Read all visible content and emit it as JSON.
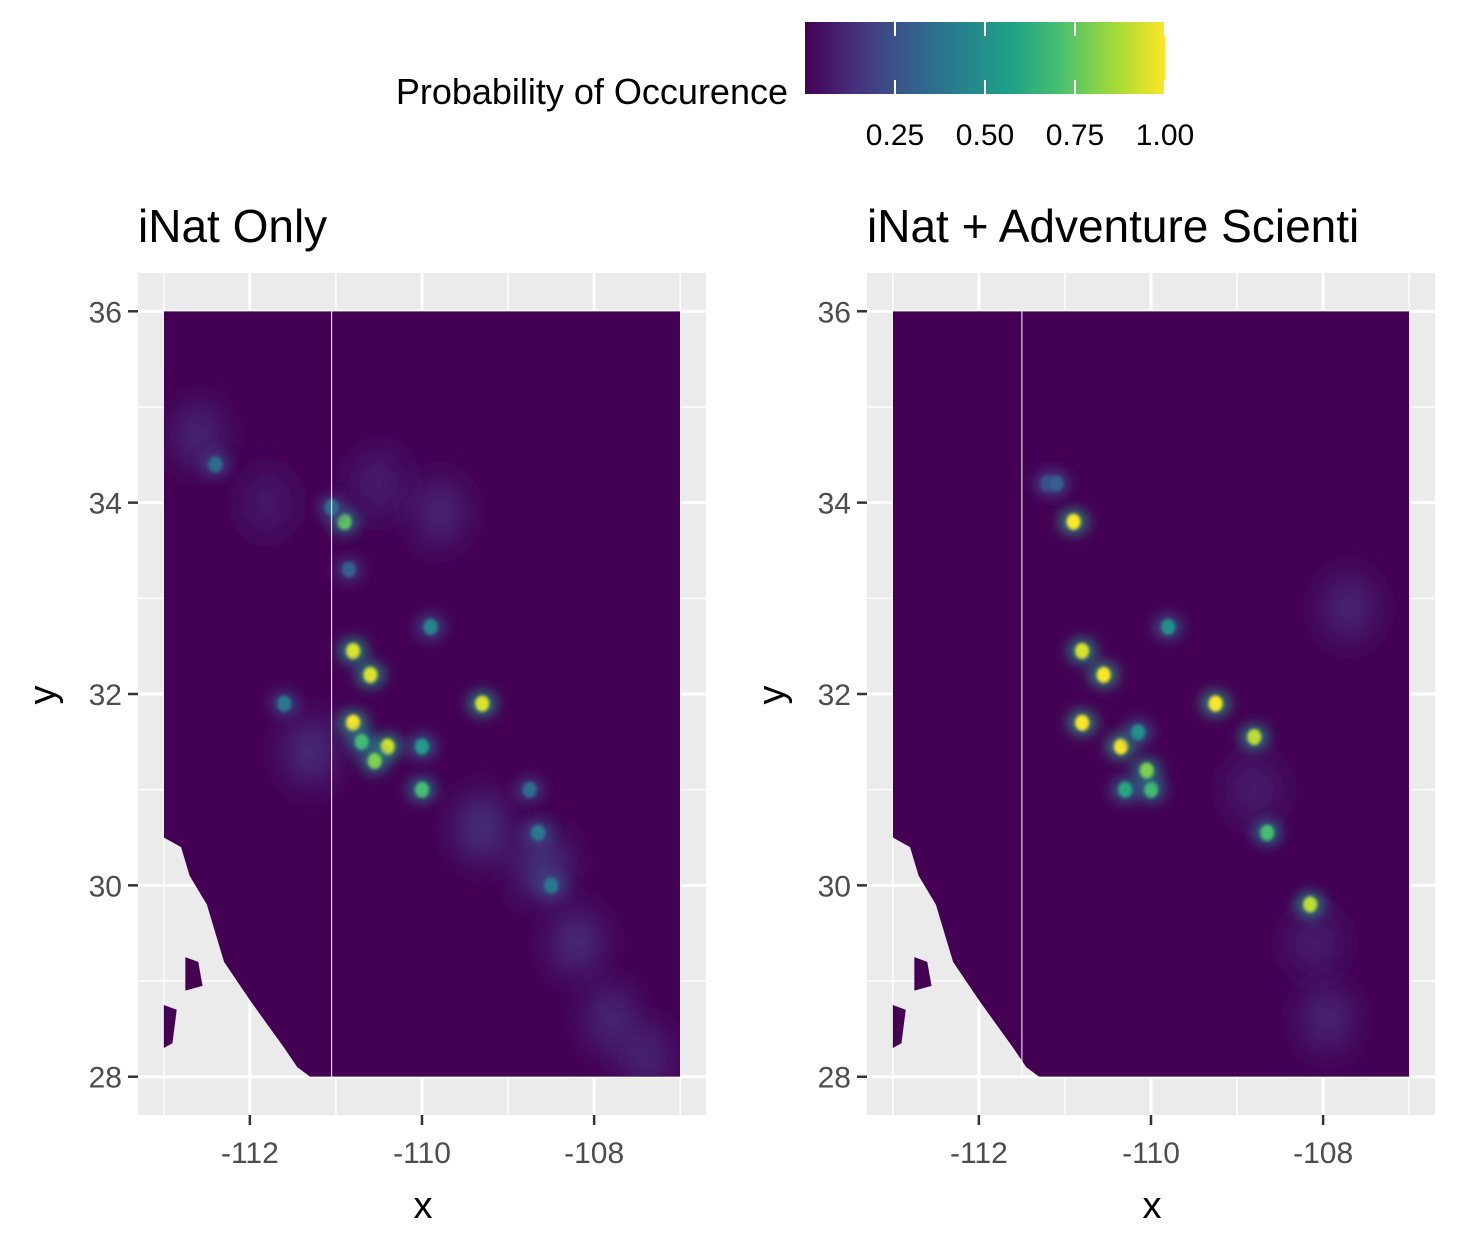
{
  "legend": {
    "title": "Probability of Occurence",
    "tick_labels": [
      "0.25",
      "0.50",
      "0.75",
      "1.00"
    ],
    "tick_values": [
      0.25,
      0.5,
      0.75,
      1.0
    ],
    "range": [
      0.0,
      1.0
    ],
    "colors": [
      "#440154",
      "#46327e",
      "#365c8d",
      "#277f8e",
      "#1fa187",
      "#4ac16d",
      "#a0da39",
      "#fde725"
    ],
    "placement": "top"
  },
  "chart_data": [
    {
      "type": "heatmap",
      "title": "iNat Only",
      "xlabel": "x",
      "ylabel": "y",
      "xlim": [
        -113.3,
        -106.7
      ],
      "ylim": [
        27.6,
        36.4
      ],
      "x_ticks": [
        -112,
        -110,
        -108
      ],
      "x_tick_labels": [
        "-112",
        "-110",
        "-108"
      ],
      "y_ticks": [
        28,
        30,
        32,
        34,
        36
      ],
      "y_tick_labels": [
        "28",
        "30",
        "32",
        "34",
        "36"
      ],
      "raster_extent": {
        "x": [
          -113.0,
          -107.0
        ],
        "y": [
          28.0,
          36.0
        ]
      },
      "seam_x": -111.05,
      "grid": true,
      "hotspots": [
        {
          "x": -110.8,
          "y": 32.45,
          "value": 0.95
        },
        {
          "x": -110.6,
          "y": 32.2,
          "value": 0.95
        },
        {
          "x": -110.8,
          "y": 31.7,
          "value": 1.0
        },
        {
          "x": -110.7,
          "y": 31.5,
          "value": 0.7
        },
        {
          "x": -110.4,
          "y": 31.45,
          "value": 0.95
        },
        {
          "x": -109.3,
          "y": 31.9,
          "value": 0.95
        },
        {
          "x": -110.9,
          "y": 33.8,
          "value": 0.75
        },
        {
          "x": -110.0,
          "y": 31.0,
          "value": 0.7
        },
        {
          "x": -110.0,
          "y": 31.45,
          "value": 0.55
        },
        {
          "x": -110.55,
          "y": 31.3,
          "value": 0.8
        },
        {
          "x": -109.9,
          "y": 32.7,
          "value": 0.45
        },
        {
          "x": -111.6,
          "y": 31.9,
          "value": 0.4
        },
        {
          "x": -112.4,
          "y": 34.4,
          "value": 0.35
        },
        {
          "x": -108.65,
          "y": 30.55,
          "value": 0.4
        },
        {
          "x": -108.5,
          "y": 30.0,
          "value": 0.4
        },
        {
          "x": -108.75,
          "y": 31.0,
          "value": 0.35
        },
        {
          "x": -111.05,
          "y": 33.95,
          "value": 0.35
        },
        {
          "x": -110.85,
          "y": 33.3,
          "value": 0.3
        }
      ],
      "diffuse_bands": [
        {
          "x": -108.6,
          "y": 30.2,
          "value": 0.18
        },
        {
          "x": -108.2,
          "y": 29.4,
          "value": 0.14
        },
        {
          "x": -107.8,
          "y": 28.6,
          "value": 0.13
        },
        {
          "x": -107.4,
          "y": 28.2,
          "value": 0.12
        },
        {
          "x": -109.3,
          "y": 30.6,
          "value": 0.16
        },
        {
          "x": -110.5,
          "y": 34.2,
          "value": 0.1
        },
        {
          "x": -109.8,
          "y": 33.9,
          "value": 0.12
        },
        {
          "x": -112.6,
          "y": 34.7,
          "value": 0.12
        },
        {
          "x": -111.8,
          "y": 34.0,
          "value": 0.08
        },
        {
          "x": -111.3,
          "y": 31.4,
          "value": 0.14
        }
      ]
    },
    {
      "type": "heatmap",
      "title": "iNat + Adventure Scienti",
      "xlabel": "x",
      "ylabel": "y",
      "xlim": [
        -113.3,
        -106.7
      ],
      "ylim": [
        27.6,
        36.4
      ],
      "x_ticks": [
        -112,
        -110,
        -108
      ],
      "x_tick_labels": [
        "-112",
        "-110",
        "-108"
      ],
      "y_ticks": [
        28,
        30,
        32,
        34,
        36
      ],
      "y_tick_labels": [
        "28",
        "30",
        "32",
        "34",
        "36"
      ],
      "raster_extent": {
        "x": [
          -113.0,
          -107.0
        ],
        "y": [
          28.0,
          36.0
        ]
      },
      "seam_x": -111.5,
      "grid": true,
      "hotspots": [
        {
          "x": -110.9,
          "y": 33.8,
          "value": 1.0
        },
        {
          "x": -110.8,
          "y": 32.45,
          "value": 0.95
        },
        {
          "x": -110.55,
          "y": 32.2,
          "value": 1.0
        },
        {
          "x": -110.8,
          "y": 31.7,
          "value": 1.0
        },
        {
          "x": -110.35,
          "y": 31.45,
          "value": 1.0
        },
        {
          "x": -109.25,
          "y": 31.9,
          "value": 1.0
        },
        {
          "x": -110.0,
          "y": 31.0,
          "value": 0.7
        },
        {
          "x": -110.3,
          "y": 31.0,
          "value": 0.6
        },
        {
          "x": -109.8,
          "y": 32.7,
          "value": 0.5
        },
        {
          "x": -108.8,
          "y": 31.55,
          "value": 0.9
        },
        {
          "x": -108.65,
          "y": 30.55,
          "value": 0.7
        },
        {
          "x": -108.15,
          "y": 29.8,
          "value": 0.9
        },
        {
          "x": -110.05,
          "y": 31.2,
          "value": 0.8
        },
        {
          "x": -110.15,
          "y": 31.6,
          "value": 0.5
        },
        {
          "x": -111.2,
          "y": 34.2,
          "value": 0.3
        },
        {
          "x": -111.1,
          "y": 34.2,
          "value": 0.3
        }
      ],
      "diffuse_bands": [
        {
          "x": -108.1,
          "y": 29.4,
          "value": 0.1
        },
        {
          "x": -107.95,
          "y": 28.6,
          "value": 0.12
        },
        {
          "x": -107.7,
          "y": 32.9,
          "value": 0.12
        },
        {
          "x": -108.8,
          "y": 31.0,
          "value": 0.09
        }
      ]
    }
  ]
}
